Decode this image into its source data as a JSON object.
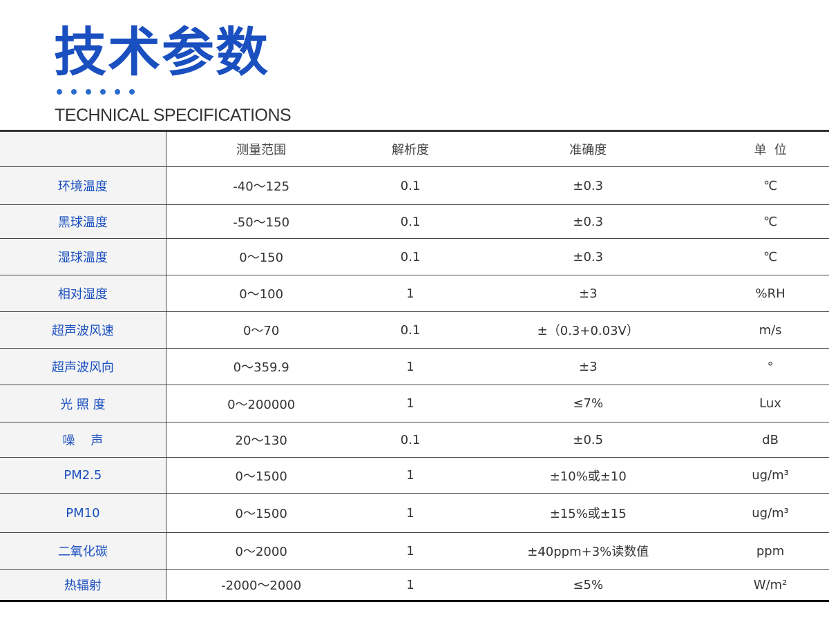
{
  "header": {
    "title": "技术参数",
    "subtitle": "TECHNICAL SPECIFICATIONS"
  },
  "table": {
    "columns": [
      "",
      "测量范围",
      "解析度",
      "准确度",
      "单  位"
    ],
    "rows": [
      [
        "环境温度",
        "-40～125",
        "0.1",
        "±0.3",
        "℃"
      ],
      [
        "黑球温度",
        "-50～150",
        "0.1",
        "±0.3",
        "℃"
      ],
      [
        "湿球温度",
        "0～150",
        "0.1",
        "±0.3",
        "℃"
      ],
      [
        "相对湿度",
        "0～100",
        "1",
        "±3",
        "%RH"
      ],
      [
        "超声波风速",
        "0～70",
        "0.1",
        "±（0.3+0.03V）",
        "m/s"
      ],
      [
        "超声波风向",
        "0～359.9",
        "1",
        "±3",
        "°"
      ],
      [
        "光 照 度",
        "0～200000",
        "1",
        "≤7%",
        "Lux"
      ],
      [
        "噪    声",
        "20～130",
        "0.1",
        "±0.5",
        "dB"
      ],
      [
        "PM2.5",
        "0～1500",
        "1",
        "±10%或±10",
        "ug/m³"
      ],
      [
        "PM10",
        "0～1500",
        "1",
        "±15%或±15",
        "ug/m³"
      ],
      [
        "二氧化碳",
        "0～2000",
        "1",
        "±40ppm+3%读数值",
        "ppm"
      ],
      [
        "热辐射",
        "-2000～2000",
        "1",
        "≤5%",
        "W/m²"
      ]
    ]
  }
}
